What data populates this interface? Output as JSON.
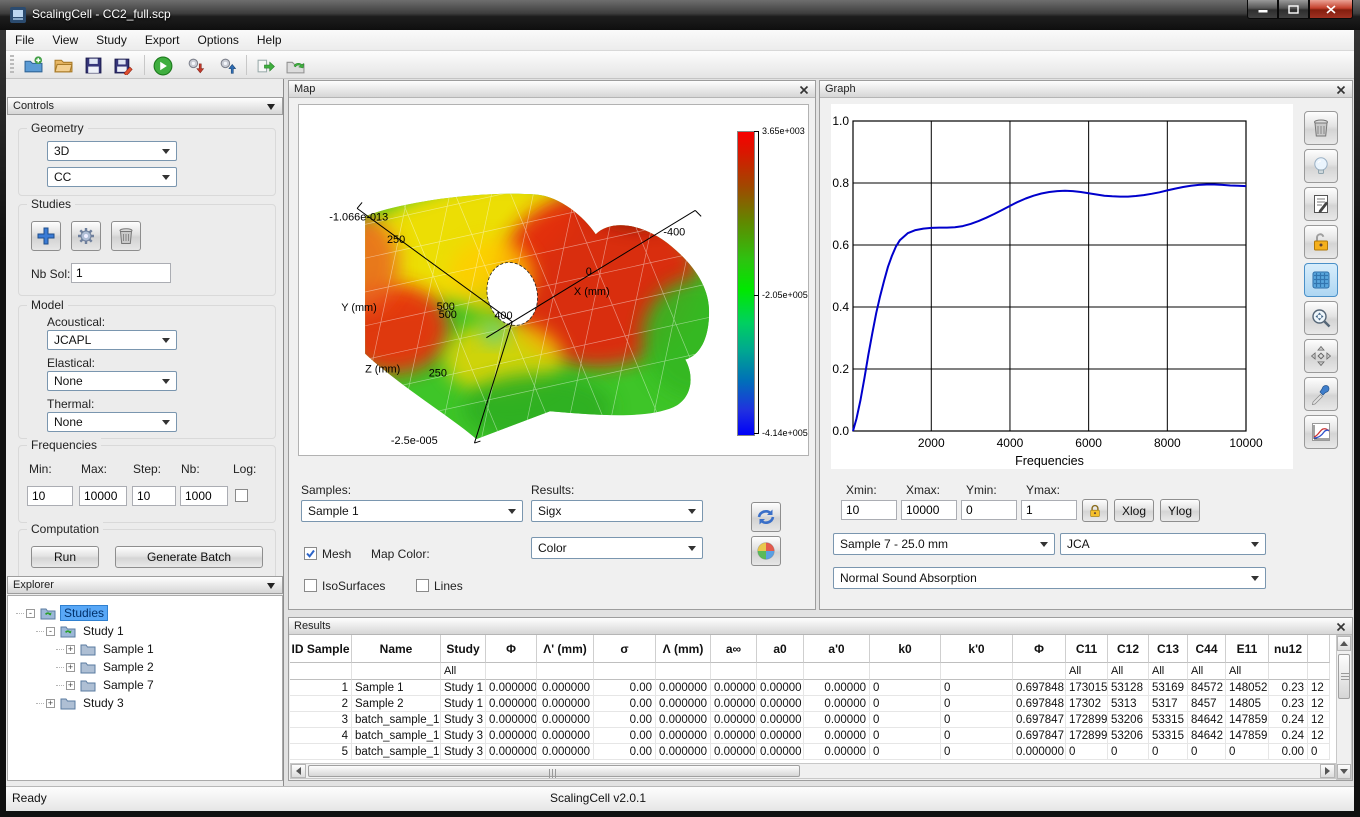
{
  "window": {
    "title": "ScalingCell - CC2_full.scp"
  },
  "menu": {
    "items": [
      "File",
      "View",
      "Study",
      "Export",
      "Options",
      "Help"
    ]
  },
  "toolbar": {
    "icons": [
      "new-project-icon",
      "open-icon",
      "save-icon",
      "save-as-icon",
      "run-icon",
      "import-gear-icon",
      "export-gear-icon",
      "export-forward-icon",
      "export-batch-icon"
    ]
  },
  "controls_panel": {
    "title": "Controls",
    "geometry": {
      "label": "Geometry",
      "dimension": "3D",
      "cell_type": "CC"
    },
    "studies": {
      "label": "Studies",
      "buttons": [
        "add-study-icon",
        "configure-study-icon",
        "delete-study-icon"
      ],
      "nb_sol_label": "Nb Sol:",
      "nb_sol_value": "1"
    },
    "model": {
      "label": "Model",
      "acoustical_label": "Acoustical:",
      "acoustical": "JCAPL",
      "elastical_label": "Elastical:",
      "elastical": "None",
      "thermal_label": "Thermal:",
      "thermal": "None"
    },
    "frequencies": {
      "label": "Frequencies",
      "min_label": "Min:",
      "min": "10",
      "max_label": "Max:",
      "max": "10000",
      "step_label": "Step:",
      "step": "10",
      "nb_label": "Nb:",
      "nb": "1000",
      "log_label": "Log:",
      "log_checked": false
    },
    "computation": {
      "label": "Computation",
      "run": "Run",
      "generate_batch": "Generate Batch"
    }
  },
  "explorer": {
    "title": "Explorer",
    "tree": [
      {
        "label": "Studies",
        "level": 0,
        "expander": "minus",
        "icon": "study-folder-icon",
        "selected": true
      },
      {
        "label": "Study 1",
        "level": 1,
        "expander": "minus",
        "icon": "study-folder-icon",
        "selected": false
      },
      {
        "label": "Sample 1",
        "level": 2,
        "expander": "plus",
        "icon": "folder-icon",
        "selected": false
      },
      {
        "label": "Sample 2",
        "level": 2,
        "expander": "plus",
        "icon": "folder-icon",
        "selected": false
      },
      {
        "label": "Sample 7",
        "level": 2,
        "expander": "plus",
        "icon": "folder-icon",
        "selected": false
      },
      {
        "label": "Study 3",
        "level": 1,
        "expander": "plus",
        "icon": "folder-icon",
        "selected": false
      }
    ]
  },
  "map_panel": {
    "title": "Map",
    "colorbar": {
      "max": "3.65e+003",
      "mid": "-2.05e+005",
      "min": "-4.14e+005"
    },
    "axes": {
      "y_top": "-1.066e-013",
      "y_250": "250",
      "y_label": "Y (mm)",
      "y_500a": "500",
      "y_500b": "500",
      "x_near": "400",
      "x_zero": "0",
      "x_label": "X (mm)",
      "x_far": "-400",
      "z_label": "Z (mm)",
      "z_250": "250",
      "z_bottom": "-2.5e-005"
    },
    "samples_label": "Samples:",
    "sample": "Sample 1",
    "results_label": "Results:",
    "result": "Sigx",
    "mesh_label": "Mesh",
    "mesh_checked": true,
    "map_color_label": "Map Color:",
    "map_color": "Color",
    "isosurfaces_label": "IsoSurfaces",
    "isosurfaces_checked": false,
    "lines_label": "Lines",
    "lines_checked": false,
    "side_buttons": [
      "refresh-icon",
      "color-wheel-icon"
    ]
  },
  "graph_panel": {
    "title": "Graph",
    "chart_data": {
      "type": "line",
      "title": "",
      "xlabel": "Frequencies",
      "ylabel": "",
      "xlim": [
        10,
        10000
      ],
      "ylim": [
        0,
        1
      ],
      "x_ticks": [
        2000,
        4000,
        6000,
        8000,
        10000
      ],
      "y_ticks": [
        0,
        0.2,
        0.4,
        0.6,
        0.8,
        1
      ],
      "grid": true,
      "legend_position": "none",
      "series": [
        {
          "name": "Normal Sound Absorption - Sample 7 - JCA",
          "color": "#0000cc",
          "x": [
            10,
            100,
            200,
            300,
            400,
            500,
            600,
            700,
            800,
            900,
            1000,
            1100,
            1200,
            1400,
            1600,
            1800,
            2000,
            2200,
            2400,
            2600,
            2800,
            3000,
            3200,
            3400,
            3600,
            3800,
            4000,
            4200,
            4400,
            4600,
            4800,
            5000,
            5200,
            5400,
            5600,
            5800,
            6000,
            6200,
            6400,
            6600,
            6800,
            7000,
            7200,
            7400,
            7600,
            7800,
            8000,
            8200,
            8400,
            8600,
            8800,
            9000,
            9200,
            9400,
            9600,
            9800,
            10000
          ],
          "y": [
            0.0,
            0.04,
            0.1,
            0.17,
            0.245,
            0.315,
            0.38,
            0.435,
            0.485,
            0.53,
            0.565,
            0.595,
            0.615,
            0.638,
            0.648,
            0.653,
            0.655,
            0.656,
            0.656,
            0.657,
            0.661,
            0.668,
            0.677,
            0.688,
            0.7,
            0.713,
            0.726,
            0.739,
            0.75,
            0.759,
            0.766,
            0.771,
            0.774,
            0.775,
            0.774,
            0.771,
            0.767,
            0.763,
            0.759,
            0.757,
            0.756,
            0.756,
            0.758,
            0.761,
            0.765,
            0.77,
            0.776,
            0.782,
            0.787,
            0.791,
            0.794,
            0.795,
            0.795,
            0.794,
            0.792,
            0.791,
            0.79
          ]
        }
      ]
    },
    "xmin_label": "Xmin:",
    "xmin": "10",
    "xmax_label": "Xmax:",
    "xmax": "10000",
    "ymin_label": "Ymin:",
    "ymin": "0",
    "ymax_label": "Ymax:",
    "ymax": "1",
    "xlog": "Xlog",
    "ylog": "Ylog",
    "sample_select": "Sample 7 - 25.0 mm",
    "model_select": "JCA",
    "quantity_select": "Normal Sound Absorption",
    "side_icons": [
      "trash-icon",
      "bulb-icon",
      "report-icon",
      "lock-open-icon",
      "grid-icon",
      "zoom-fit-icon",
      "pan-icon",
      "picker-icon",
      "curves-icon"
    ]
  },
  "results_panel": {
    "title": "Results",
    "headers": [
      "ID Sample",
      "Name",
      "Study",
      "Φ",
      "Λ' (mm)",
      "σ",
      "Λ (mm)",
      "a∞",
      "a0",
      "a'0",
      "k0",
      "k'0",
      "Φ",
      "C11",
      "C12",
      "C13",
      "C44",
      "E11",
      "nu12",
      ""
    ],
    "filter_row": [
      "",
      "",
      "All",
      "",
      "",
      "",
      "",
      "",
      "",
      "",
      "",
      "",
      "",
      "All",
      "All",
      "All",
      "All",
      "All",
      "",
      ""
    ],
    "rows": [
      [
        "1",
        "Sample 1",
        "Study 1",
        "0.000000",
        "0.000000",
        "0.00",
        "0.000000",
        "0.00000",
        "0.00000",
        "0.00000",
        "0",
        "0",
        "0.697848",
        "173015",
        "53128",
        "53169",
        "84572",
        "148052",
        "0.23",
        "12"
      ],
      [
        "2",
        "Sample 2",
        "Study 1",
        "0.000000",
        "0.000000",
        "0.00",
        "0.000000",
        "0.00000",
        "0.00000",
        "0.00000",
        "0",
        "0",
        "0.697848",
        "17302",
        "5313",
        "5317",
        "8457",
        "14805",
        "0.23",
        "12"
      ],
      [
        "3",
        "batch_sample_1",
        "Study 3",
        "0.000000",
        "0.000000",
        "0.00",
        "0.000000",
        "0.00000",
        "0.00000",
        "0.00000",
        "0",
        "0",
        "0.697847",
        "172899",
        "53206",
        "53315",
        "84642",
        "147859",
        "0.24",
        "12"
      ],
      [
        "4",
        "batch_sample_1",
        "Study 3",
        "0.000000",
        "0.000000",
        "0.00",
        "0.000000",
        "0.00000",
        "0.00000",
        "0.00000",
        "0",
        "0",
        "0.697847",
        "172899",
        "53206",
        "53315",
        "84642",
        "147859",
        "0.24",
        "12"
      ],
      [
        "5",
        "batch_sample_1",
        "Study 3",
        "0.000000",
        "0.000000",
        "0.00",
        "0.000000",
        "0.00000",
        "0.00000",
        "0.00000",
        "0",
        "0",
        "0.000000",
        "0",
        "0",
        "0",
        "0",
        "0",
        "0.00",
        "0"
      ]
    ]
  },
  "status_bar": {
    "ready": "Ready",
    "version": "ScalingCell v2.0.1"
  }
}
